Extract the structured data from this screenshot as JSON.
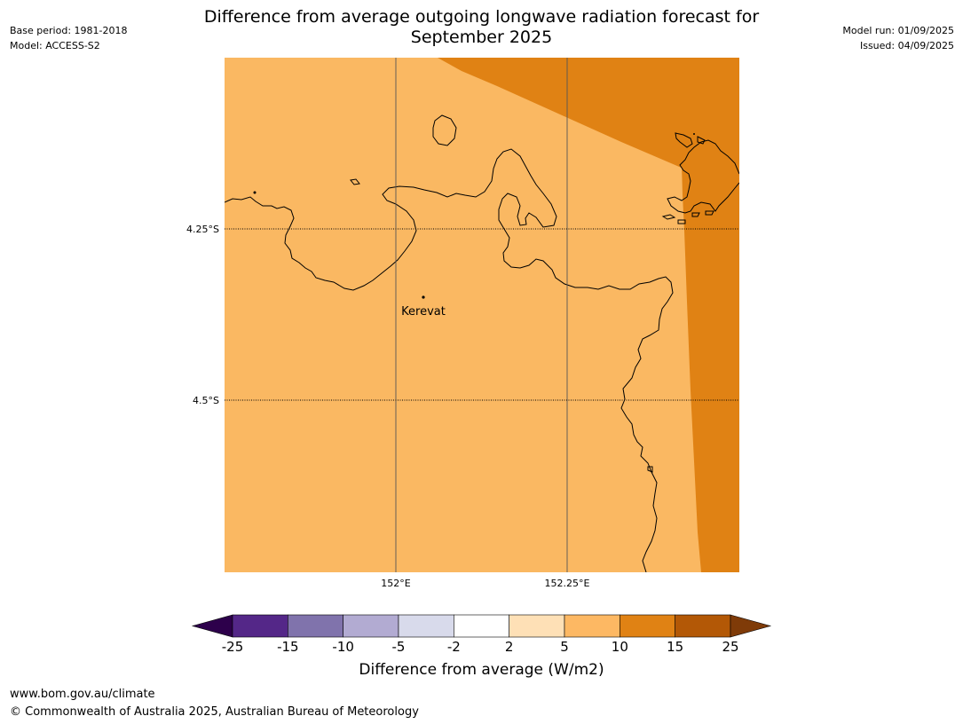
{
  "title_line1": "Difference from average outgoing longwave radiation forecast for",
  "title_line2": "September 2025",
  "meta_left": {
    "base_period": "Base period: 1981-2018",
    "model": "Model: ACCESS-S2"
  },
  "meta_right": {
    "model_run": "Model run: 01/09/2025",
    "issued": "Issued: 04/09/2025"
  },
  "map": {
    "lat_labels": [
      "4.25°S",
      "4.5°S"
    ],
    "lon_labels": [
      "152°E",
      "152.25°E"
    ],
    "place": {
      "name": "Kerevat"
    },
    "colors": {
      "band_5_10": "#fab862",
      "band_10_15": "#e08214",
      "coastline": "#000000"
    }
  },
  "colorbar": {
    "title": "Difference from average (W/m2)",
    "tick_labels": [
      "-25",
      "-15",
      "-10",
      "-5",
      "-2",
      "2",
      "5",
      "10",
      "15",
      "25"
    ],
    "colors": [
      "#2d004b",
      "#542788",
      "#8073ac",
      "#b2abd2",
      "#d8daeb",
      "#ffffff",
      "#fee0b6",
      "#fdb863",
      "#e08214",
      "#b35806",
      "#7f3b08"
    ]
  },
  "footer": {
    "url": "www.bom.gov.au/climate",
    "copyright": "© Commonwealth of Australia 2025, Australian Bureau of Meteorology"
  }
}
